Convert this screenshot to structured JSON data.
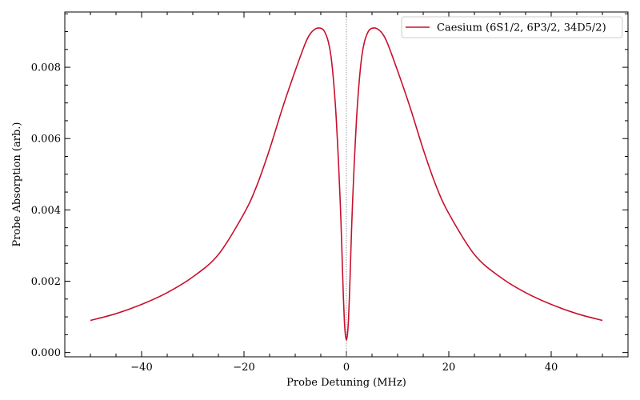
{
  "chart_data": {
    "type": "line",
    "xlabel": "Probe Detuning (MHz)",
    "ylabel": "Probe Absorption (arb.)",
    "xlim": [
      -55,
      55
    ],
    "ylim": [
      -0.00012,
      0.00955
    ],
    "x_ticks": [
      -40,
      -20,
      0,
      20,
      40
    ],
    "x_tick_labels": [
      "−40",
      "−20",
      "0",
      "20",
      "40"
    ],
    "y_ticks": [
      0.0,
      0.002,
      0.004,
      0.006,
      0.008
    ],
    "y_tick_labels": [
      "0.000",
      "0.002",
      "0.004",
      "0.006",
      "0.008"
    ],
    "x_minor_step": 5,
    "y_minor_step": 0.0005,
    "grid": false,
    "legend_position": "top-right",
    "reference_line": {
      "x": 0,
      "style": "dotted",
      "color": "#808080"
    },
    "series": [
      {
        "name": "Caesium (6S1/2, 6P3/2, 34D5/2)",
        "color": "#c8102e",
        "x": [
          -50,
          -45,
          -40,
          -35,
          -30,
          -25,
          -20,
          -17.5,
          -15,
          -12.5,
          -10,
          -8,
          -7,
          -6,
          -5.2,
          -4.5,
          -4,
          -3.5,
          -3,
          -2.5,
          -2,
          -1.5,
          -1.2,
          -1,
          -0.8,
          -0.6,
          -0.4,
          -0.2,
          0,
          0.2,
          0.4,
          0.6,
          0.8,
          1,
          1.2,
          1.5,
          2,
          2.5,
          3,
          3.5,
          4,
          4.5,
          5.2,
          6,
          7,
          8,
          10,
          12.5,
          15,
          17.5,
          20,
          25,
          30,
          35,
          40,
          45,
          50
        ],
        "y": [
          0.0009,
          0.00109,
          0.00135,
          0.00168,
          0.00212,
          0.00275,
          0.0039,
          0.00468,
          0.0057,
          0.00685,
          0.0079,
          0.00868,
          0.00895,
          0.00908,
          0.0091,
          0.00905,
          0.00892,
          0.0087,
          0.0083,
          0.0076,
          0.0066,
          0.0052,
          0.0042,
          0.0034,
          0.0025,
          0.0016,
          0.0009,
          0.0005,
          0.00035,
          0.0005,
          0.0009,
          0.0016,
          0.0025,
          0.0034,
          0.0042,
          0.0052,
          0.0066,
          0.0076,
          0.0083,
          0.0087,
          0.00892,
          0.00905,
          0.0091,
          0.00908,
          0.00895,
          0.00868,
          0.0079,
          0.00685,
          0.0057,
          0.00468,
          0.0039,
          0.00275,
          0.00212,
          0.00168,
          0.00135,
          0.00109,
          0.0009
        ]
      }
    ]
  }
}
